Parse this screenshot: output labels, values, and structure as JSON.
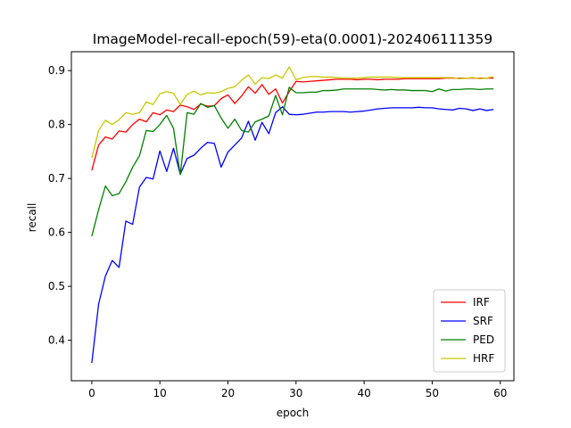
{
  "chart_data": {
    "type": "line",
    "title": "ImageModel-recall-epoch(59)-eta(0.0001)-202406111359",
    "xlabel": "epoch",
    "ylabel": "recall",
    "xlim": [
      -3,
      62
    ],
    "ylim": [
      0.325,
      0.935
    ],
    "xticks": [
      0,
      10,
      20,
      30,
      40,
      50,
      60
    ],
    "yticks": [
      0.4,
      0.5,
      0.6,
      0.7,
      0.8,
      0.9
    ],
    "ytick_labels": [
      "0.4",
      "0.5",
      "0.6",
      "0.7",
      "0.8",
      "0.9"
    ],
    "grid": false,
    "legend_position": "lower-right",
    "x": [
      0,
      1,
      2,
      3,
      4,
      5,
      6,
      7,
      8,
      9,
      10,
      11,
      12,
      13,
      14,
      15,
      16,
      17,
      18,
      19,
      20,
      21,
      22,
      23,
      24,
      25,
      26,
      27,
      28,
      29,
      30,
      31,
      32,
      33,
      34,
      35,
      36,
      37,
      38,
      39,
      40,
      41,
      42,
      43,
      44,
      45,
      46,
      47,
      48,
      49,
      50,
      51,
      52,
      53,
      54,
      55,
      56,
      57,
      58,
      59
    ],
    "series": [
      {
        "name": "IRF",
        "color": "#ff0000",
        "values": [
          0.715,
          0.762,
          0.777,
          0.773,
          0.788,
          0.786,
          0.8,
          0.81,
          0.805,
          0.822,
          0.818,
          0.827,
          0.824,
          0.836,
          0.833,
          0.828,
          0.838,
          0.834,
          0.835,
          0.848,
          0.855,
          0.839,
          0.853,
          0.87,
          0.858,
          0.874,
          0.856,
          0.866,
          0.84,
          0.861,
          0.88,
          0.879,
          0.88,
          0.881,
          0.882,
          0.883,
          0.884,
          0.884,
          0.884,
          0.883,
          0.884,
          0.884,
          0.883,
          0.884,
          0.884,
          0.884,
          0.885,
          0.885,
          0.885,
          0.885,
          0.885,
          0.885,
          0.886,
          0.886,
          0.886,
          0.886,
          0.886,
          0.886,
          0.886,
          0.886
        ]
      },
      {
        "name": "SRF",
        "color": "#0000ff",
        "values": [
          0.358,
          0.467,
          0.519,
          0.548,
          0.535,
          0.621,
          0.615,
          0.684,
          0.702,
          0.699,
          0.751,
          0.713,
          0.756,
          0.708,
          0.737,
          0.743,
          0.756,
          0.767,
          0.765,
          0.721,
          0.749,
          0.762,
          0.775,
          0.806,
          0.771,
          0.804,
          0.783,
          0.822,
          0.833,
          0.819,
          0.818,
          0.819,
          0.821,
          0.823,
          0.823,
          0.824,
          0.824,
          0.824,
          0.823,
          0.824,
          0.825,
          0.827,
          0.829,
          0.83,
          0.831,
          0.831,
          0.831,
          0.831,
          0.832,
          0.831,
          0.831,
          0.829,
          0.828,
          0.827,
          0.83,
          0.829,
          0.826,
          0.829,
          0.826,
          0.828
        ]
      },
      {
        "name": "PED",
        "color": "#008000",
        "values": [
          0.593,
          0.642,
          0.686,
          0.668,
          0.672,
          0.694,
          0.721,
          0.742,
          0.789,
          0.787,
          0.8,
          0.817,
          0.793,
          0.707,
          0.822,
          0.819,
          0.839,
          0.832,
          0.835,
          0.812,
          0.793,
          0.81,
          0.789,
          0.786,
          0.805,
          0.81,
          0.816,
          0.854,
          0.818,
          0.869,
          0.859,
          0.859,
          0.86,
          0.86,
          0.863,
          0.863,
          0.864,
          0.866,
          0.866,
          0.866,
          0.866,
          0.866,
          0.865,
          0.864,
          0.865,
          0.864,
          0.864,
          0.863,
          0.863,
          0.863,
          0.861,
          0.866,
          0.862,
          0.865,
          0.865,
          0.866,
          0.866,
          0.865,
          0.866,
          0.866
        ]
      },
      {
        "name": "HRF",
        "color": "#c8c800",
        "values": [
          0.738,
          0.789,
          0.808,
          0.8,
          0.809,
          0.822,
          0.819,
          0.822,
          0.842,
          0.837,
          0.857,
          0.861,
          0.858,
          0.837,
          0.856,
          0.862,
          0.855,
          0.859,
          0.858,
          0.861,
          0.867,
          0.87,
          0.882,
          0.892,
          0.875,
          0.887,
          0.885,
          0.892,
          0.886,
          0.907,
          0.883,
          0.887,
          0.889,
          0.889,
          0.888,
          0.888,
          0.887,
          0.886,
          0.886,
          0.886,
          0.887,
          0.888,
          0.888,
          0.888,
          0.888,
          0.887,
          0.887,
          0.887,
          0.887,
          0.887,
          0.887,
          0.887,
          0.887,
          0.887,
          0.885,
          0.886,
          0.887,
          0.885,
          0.886,
          0.889
        ]
      }
    ]
  }
}
